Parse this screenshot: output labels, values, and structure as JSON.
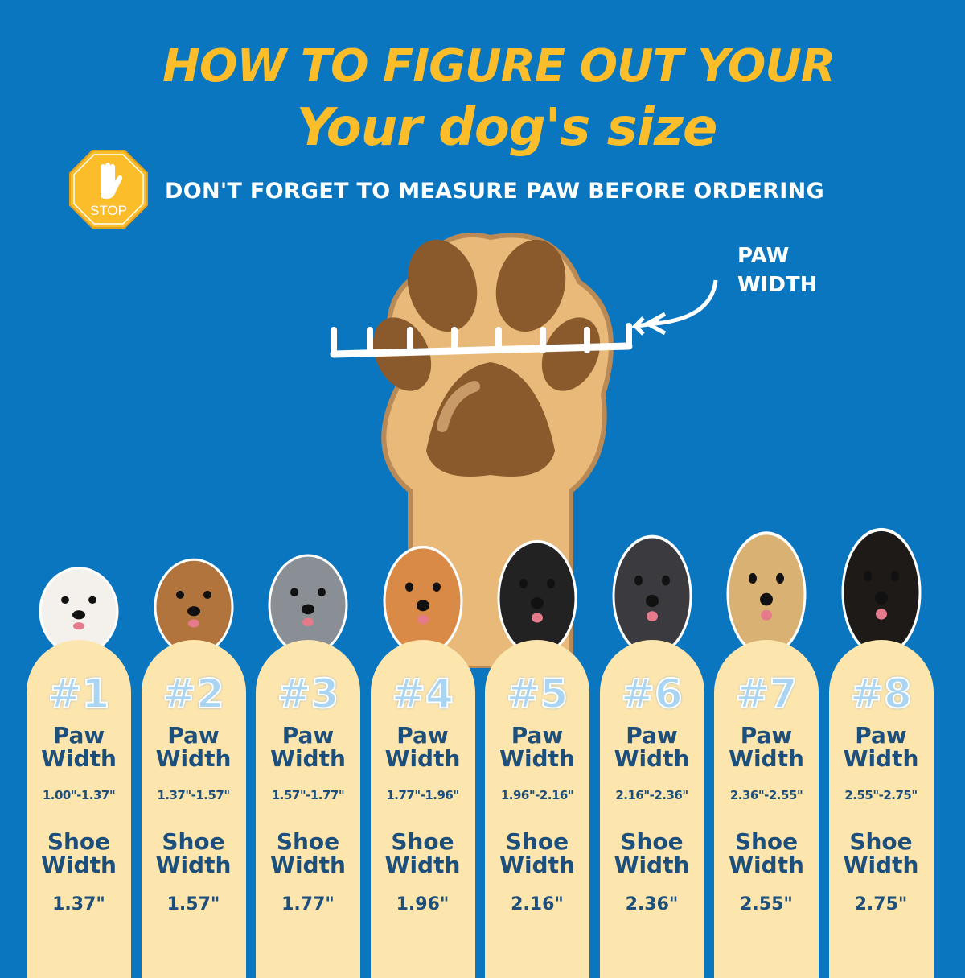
{
  "title_line1": "HOW TO FIGURE OUT YOUR",
  "title_line2": "Your dog's size",
  "stop_sign": {
    "text": "STOP",
    "icon": "hand-stop-icon"
  },
  "subtitle": "DON'T FORGET TO MEASURE PAW BEFORE ORDERING",
  "paw_label_line1": "PAW",
  "paw_label_line2": "WIDTH",
  "paw_width_label": "Paw",
  "paw_width_label2": "Width",
  "shoe_width_label": "Shoe",
  "shoe_width_label2": "Width",
  "colors": {
    "background": "#0b76c0",
    "title": "#fbbd2a",
    "card": "#fde5ae",
    "card_text": "#1c4f7c"
  },
  "sizes": [
    {
      "number": "#1",
      "paw_width": "1.00\"-1.37\"",
      "shoe_width": "1.37\"",
      "dog_color": "#f4f1ec"
    },
    {
      "number": "#2",
      "paw_width": "1.37\"-1.57\"",
      "shoe_width": "1.57\"",
      "dog_color": "#b0743c"
    },
    {
      "number": "#3",
      "paw_width": "1.57\"-1.77\"",
      "shoe_width": "1.77\"",
      "dog_color": "#8a8f96"
    },
    {
      "number": "#4",
      "paw_width": "1.77\"-1.96\"",
      "shoe_width": "1.96\"",
      "dog_color": "#d98a46"
    },
    {
      "number": "#5",
      "paw_width": "1.96\"-2.16\"",
      "shoe_width": "2.16\"",
      "dog_color": "#222222"
    },
    {
      "number": "#6",
      "paw_width": "2.16\"-2.36\"",
      "shoe_width": "2.36\"",
      "dog_color": "#3a3a3f"
    },
    {
      "number": "#7",
      "paw_width": "2.36\"-2.55\"",
      "shoe_width": "2.55\"",
      "dog_color": "#d9b173"
    },
    {
      "number": "#8",
      "paw_width": "2.55\"-2.75\"",
      "shoe_width": "2.75\"",
      "dog_color": "#1e1a18"
    }
  ]
}
